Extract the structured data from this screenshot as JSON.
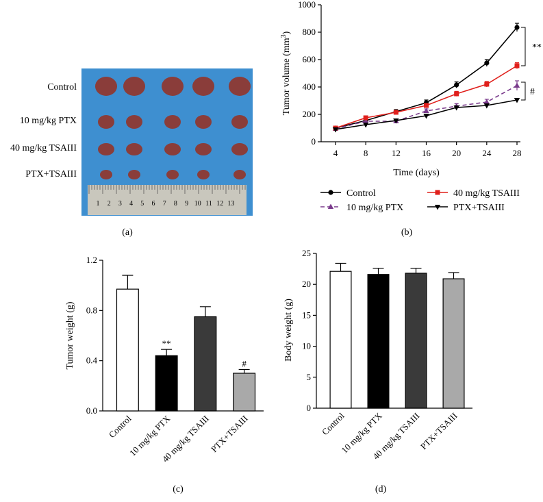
{
  "panels": {
    "a": {
      "label": "(a)",
      "rows": [
        "Control",
        "10 mg/kg PTX",
        "40 mg/kg TSAIII",
        "PTX+TSAIII"
      ],
      "ruler_numbers": [
        "1",
        "2",
        "3",
        "4",
        "5",
        "6",
        "7",
        "8",
        "9",
        "10",
        "11",
        "12",
        "13"
      ],
      "photo_bg": "#3e8fd0",
      "tissue_color": "#8a3d3a"
    },
    "b": {
      "label": "(b)"
    },
    "c": {
      "label": "(c)"
    },
    "d": {
      "label": "(d)"
    }
  },
  "chart_data": [
    {
      "panel": "b",
      "type": "line",
      "xlabel": "Time (days)",
      "ylabel": "Tumor volume (mm",
      "ylabel_sup": "3",
      "ylabel_close": ")",
      "x": [
        4,
        8,
        12,
        16,
        20,
        24,
        28
      ],
      "xlim": [
        4,
        28
      ],
      "ylim": [
        0,
        1000
      ],
      "yticks": [
        0,
        200,
        400,
        600,
        800,
        1000
      ],
      "legend_position": "bottom",
      "series": [
        {
          "name": "Control",
          "color": "#000000",
          "marker": "circle",
          "dashed": false,
          "values": [
            100,
            155,
            220,
            285,
            415,
            575,
            835
          ],
          "errors": [
            10,
            12,
            15,
            20,
            22,
            25,
            30
          ]
        },
        {
          "name": "10 mg/kg PTX",
          "color": "#7a3b8c",
          "marker": "triangle-up",
          "dashed": true,
          "values": [
            95,
            150,
            150,
            225,
            260,
            290,
            410
          ],
          "errors": [
            8,
            10,
            12,
            15,
            18,
            20,
            35
          ]
        },
        {
          "name": "40 mg/kg TSAIII",
          "color": "#e0201c",
          "marker": "square",
          "dashed": false,
          "values": [
            100,
            175,
            215,
            265,
            350,
            420,
            555
          ],
          "errors": [
            8,
            10,
            12,
            15,
            18,
            20,
            22
          ]
        },
        {
          "name": "PTX+TSAIII",
          "color": "#000000",
          "marker": "triangle-down",
          "dashed": false,
          "values": [
            90,
            125,
            155,
            190,
            250,
            265,
            305
          ],
          "errors": [
            8,
            10,
            10,
            12,
            12,
            12,
            12
          ]
        }
      ],
      "annotations": [
        "**",
        "#"
      ]
    },
    {
      "panel": "c",
      "type": "bar",
      "ylabel": "Tumor weight (g)",
      "categories": [
        "Control",
        "10 mg/kg PTX",
        "40 mg/kg TSAIII",
        "PTX+TSAIII"
      ],
      "values": [
        0.97,
        0.44,
        0.75,
        0.3
      ],
      "errors": [
        0.11,
        0.05,
        0.08,
        0.03
      ],
      "colors": [
        "#ffffff",
        "#000000",
        "#3a3a3a",
        "#a9a9a9"
      ],
      "ylim": [
        0,
        1.2
      ],
      "yticks": [
        "0.0",
        "0.4",
        "0.8",
        "1.2"
      ],
      "annotations": [
        "",
        "**",
        "",
        "#"
      ]
    },
    {
      "panel": "d",
      "type": "bar",
      "ylabel": "Body weight (g)",
      "categories": [
        "Control",
        "10 mg/kg PTX",
        "40 mg/kg TSAIII",
        "PTX+TSAIII"
      ],
      "values": [
        22.1,
        21.6,
        21.8,
        20.9
      ],
      "errors": [
        1.3,
        1.0,
        0.8,
        1.0
      ],
      "colors": [
        "#ffffff",
        "#000000",
        "#3a3a3a",
        "#a9a9a9"
      ],
      "ylim": [
        0,
        25
      ],
      "yticks": [
        "0",
        "5",
        "10",
        "15",
        "20",
        "25"
      ]
    }
  ]
}
